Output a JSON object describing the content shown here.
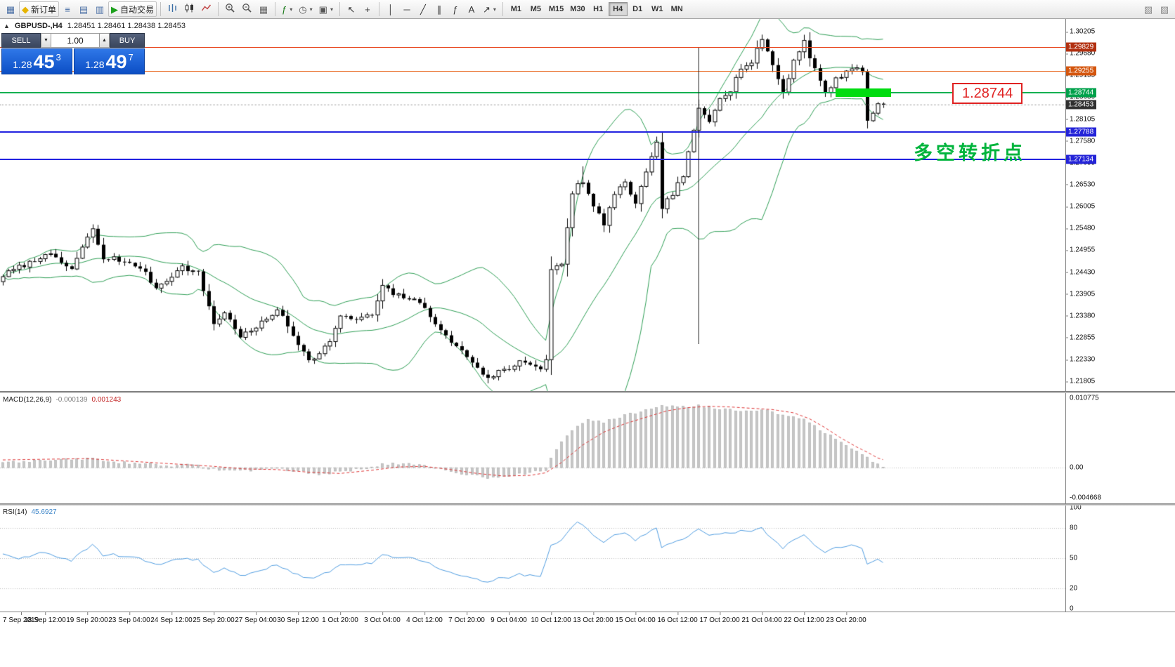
{
  "toolbar": {
    "caret_glyph": "▾",
    "buttons": [
      {
        "name": "chart-window",
        "glyph": "▦",
        "color": "#4a6fa5"
      },
      {
        "name": "new-order",
        "glyph": "◆",
        "color": "#e6b400",
        "label": "新订单"
      },
      {
        "name": "market-watch",
        "glyph": "≡",
        "color": "#4a6fa5"
      },
      {
        "name": "data-window",
        "glyph": "▤",
        "color": "#4a6fa5"
      },
      {
        "name": "navigator",
        "glyph": "▥",
        "color": "#4a6fa5"
      },
      {
        "name": "autotrading",
        "glyph": "▶",
        "color": "#1ca01c",
        "label": "自动交易"
      },
      {
        "sep": true
      },
      {
        "name": "bar-chart",
        "svg": "bars"
      },
      {
        "name": "candlestick-chart",
        "svg": "candles"
      },
      {
        "name": "line-chart",
        "svg": "line"
      },
      {
        "sep": true
      },
      {
        "name": "zoom-in",
        "svg": "zoomin"
      },
      {
        "name": "zoom-out",
        "svg": "zoomout"
      },
      {
        "name": "tile-windows",
        "glyph": "▦",
        "color": "#666666"
      },
      {
        "sep": true
      },
      {
        "name": "indicators",
        "glyph": "ƒ",
        "color": "#1a7a1a",
        "caret": true
      },
      {
        "name": "periods",
        "glyph": "◷",
        "color": "#555555",
        "caret": true
      },
      {
        "name": "templates",
        "glyph": "▣",
        "color": "#555555",
        "caret": true
      },
      {
        "sep": true
      },
      {
        "name": "cursor",
        "glyph": "↖",
        "color": "#333333"
      },
      {
        "name": "crosshair",
        "glyph": "+",
        "color": "#333333"
      },
      {
        "sep": true
      },
      {
        "name": "vertical-line",
        "glyph": "│",
        "color": "#333333"
      },
      {
        "name": "horizontal-line",
        "glyph": "─",
        "color": "#333333"
      },
      {
        "name": "trendline",
        "glyph": "╱",
        "color": "#333333"
      },
      {
        "name": "equidistant-channel",
        "glyph": "∥",
        "color": "#333333"
      },
      {
        "name": "fibonacci",
        "glyph": "ƒ",
        "color": "#333333"
      },
      {
        "name": "text",
        "glyph": "A",
        "color": "#333333"
      },
      {
        "name": "arrows",
        "glyph": "↗",
        "color": "#333333",
        "caret": true
      },
      {
        "sep": true
      }
    ],
    "timeframes": [
      "M1",
      "M5",
      "M15",
      "M30",
      "H1",
      "H4",
      "D1",
      "W1",
      "MN"
    ],
    "active_timeframe": "H4",
    "right_buttons": [
      {
        "name": "object-list",
        "glyph": "▧",
        "color": "#888888"
      },
      {
        "name": "docking",
        "glyph": "▨",
        "color": "#888888"
      }
    ]
  },
  "chart": {
    "collapse_glyph": "▲",
    "title": "GBPUSD-,H4",
    "ohlc": "1.28451 1.28461 1.28438 1.28453"
  },
  "trade_panel": {
    "sell_label": "SELL",
    "buy_label": "BUY",
    "volume": "1.00",
    "step_down_glyph": "▼",
    "step_up_glyph": "▲",
    "sell_price": {
      "prefix": "1.28",
      "big": "45",
      "sup": "3"
    },
    "buy_price": {
      "prefix": "1.28",
      "big": "49",
      "sup": "7"
    }
  },
  "annotations": {
    "price_box": "1.28744",
    "turning_point_text": "多空转折点"
  },
  "price_axis": {
    "ticks": [
      "1.30205",
      "1.29680",
      "1.29155",
      "1.28630",
      "1.28105",
      "1.27580",
      "1.27055",
      "1.26530",
      "1.26005",
      "1.25480",
      "1.24955",
      "1.24430",
      "1.23905",
      "1.23380",
      "1.22855",
      "1.22330",
      "1.21805"
    ],
    "badges": [
      {
        "label": "1.29829",
        "price": 1.29829,
        "color": "#b23010"
      },
      {
        "label": "1.29255",
        "price": 1.29255,
        "color": "#d4560e"
      },
      {
        "label": "1.28744",
        "price": 1.28744,
        "color": "#00a14b"
      },
      {
        "label": "1.28453",
        "price": 1.28453,
        "color": "#303030"
      },
      {
        "label": "1.27788",
        "price": 1.27788,
        "color": "#2424d8"
      },
      {
        "label": "1.27134",
        "price": 1.27134,
        "color": "#2424d8"
      }
    ]
  },
  "hlines": [
    {
      "price": 1.29829,
      "color": "#e8431a",
      "width": 1
    },
    {
      "price": 1.29255,
      "color": "#e8641a",
      "width": 1
    },
    {
      "price": 1.28744,
      "color": "#00b050",
      "width": 2
    },
    {
      "price": 1.27788,
      "color": "#2222e0",
      "width": 2
    },
    {
      "price": 1.27134,
      "color": "#2222e0",
      "width": 2
    }
  ],
  "current_price": 1.28453,
  "indicator_macd": {
    "label": "MACD(12,26,9)",
    "value_main": "-0.000139",
    "value_signal": "0.001243",
    "scale_top": "0.010775",
    "scale_zero": "0.00",
    "scale_bottom": "-0.004668"
  },
  "indicator_rsi": {
    "label": "RSI(14)",
    "value": "45.6927",
    "scale": [
      "100",
      "80",
      "50",
      "20",
      "0"
    ]
  },
  "time_axis": [
    "7 Sep 2019",
    "18 Sep 12:00",
    "19 Sep 20:00",
    "23 Sep 04:00",
    "24 Sep 12:00",
    "25 Sep 20:00",
    "27 Sep 04:00",
    "30 Sep 12:00",
    "1 Oct 20:00",
    "3 Oct 04:00",
    "4 Oct 12:00",
    "7 Oct 20:00",
    "9 Oct 04:00",
    "10 Oct 12:00",
    "13 Oct 20:00",
    "15 Oct 04:00",
    "16 Oct 12:00",
    "17 Oct 20:00",
    "21 Oct 04:00",
    "22 Oct 12:00",
    "23 Oct 20:00"
  ],
  "colors": {
    "candle_up": "#ffffff",
    "candle_down": "#000000",
    "candle_outline": "#000000",
    "bollinger": "#2e9e55",
    "macd_hist_fill": "#c6c6c6",
    "macd_hist_stroke": "#a8a8a8",
    "macd_signal": "#dd3333",
    "rsi_line": "#4f9ce0",
    "grid_dotted": "#bdbdbd",
    "annotation_green": "#00b43c",
    "annotation_red": "#e02222",
    "zone_green": "#00dc10"
  },
  "chart_data": {
    "type": "candlestick",
    "symbol": "GBPUSD-",
    "timeframe": "H4",
    "bars": 168,
    "price_range_top": 1.30509,
    "price_range_bottom": 1.21573,
    "macd_range_top": 0.011645,
    "macd_range_bottom": -0.005539,
    "rsi_range_top": 102.78,
    "rsi_range_bottom": -2.78,
    "last_ohlc": {
      "open": 1.28451,
      "high": 1.28461,
      "low": 1.28438,
      "close": 1.28453
    },
    "bollinger": {
      "period": 20,
      "deviation": 2
    },
    "close_anchors": [
      [
        0,
        1.2435
      ],
      [
        3,
        1.2455
      ],
      [
        6,
        1.247
      ],
      [
        8,
        1.249
      ],
      [
        11,
        1.2465
      ],
      [
        13,
        1.245
      ],
      [
        15,
        1.25
      ],
      [
        17,
        1.2548
      ],
      [
        19,
        1.247
      ],
      [
        21,
        1.248
      ],
      [
        23,
        1.2465
      ],
      [
        26,
        1.2455
      ],
      [
        29,
        1.2405
      ],
      [
        31,
        1.2425
      ],
      [
        34,
        1.2455
      ],
      [
        37,
        1.244
      ],
      [
        40,
        1.232
      ],
      [
        42,
        1.2345
      ],
      [
        45,
        1.229
      ],
      [
        47,
        1.23
      ],
      [
        50,
        1.233
      ],
      [
        52,
        1.2355
      ],
      [
        55,
        1.229
      ],
      [
        58,
        1.2235
      ],
      [
        60,
        1.2245
      ],
      [
        62,
        1.228
      ],
      [
        64,
        1.2335
      ],
      [
        67,
        1.233
      ],
      [
        70,
        1.234
      ],
      [
        72,
        1.2408
      ],
      [
        74,
        1.239
      ],
      [
        77,
        1.238
      ],
      [
        80,
        1.236
      ],
      [
        83,
        1.23
      ],
      [
        86,
        1.2265
      ],
      [
        88,
        1.224
      ],
      [
        90,
        1.2215
      ],
      [
        92,
        1.2185
      ],
      [
        94,
        1.2205
      ],
      [
        96,
        1.221
      ],
      [
        98,
        1.223
      ],
      [
        100,
        1.2225
      ],
      [
        102,
        1.221
      ],
      [
        103,
        1.223
      ],
      [
        104,
        1.2445
      ],
      [
        106,
        1.2465
      ],
      [
        108,
        1.263
      ],
      [
        109,
        1.266
      ],
      [
        110,
        1.2655
      ],
      [
        112,
        1.26
      ],
      [
        114,
        1.256
      ],
      [
        116,
        1.263
      ],
      [
        118,
        1.2655
      ],
      [
        120,
        1.261
      ],
      [
        122,
        1.268
      ],
      [
        124,
        1.275
      ],
      [
        125,
        1.26
      ],
      [
        127,
        1.263
      ],
      [
        129,
        1.2675
      ],
      [
        131,
        1.278
      ],
      [
        132,
        1.2835
      ],
      [
        134,
        1.2805
      ],
      [
        136,
        1.2865
      ],
      [
        138,
        1.288
      ],
      [
        140,
        1.2935
      ],
      [
        142,
        1.2945
      ],
      [
        144,
        1.3005
      ],
      [
        146,
        1.294
      ],
      [
        148,
        1.2875
      ],
      [
        150,
        1.295
      ],
      [
        152,
        1.3
      ],
      [
        153,
        1.296
      ],
      [
        155,
        1.29
      ],
      [
        156,
        1.2875
      ],
      [
        158,
        1.2905
      ],
      [
        160,
        1.2925
      ],
      [
        161,
        1.2935
      ],
      [
        163,
        1.2925
      ],
      [
        164,
        1.2805
      ],
      [
        165,
        1.2825
      ],
      [
        166,
        1.285
      ],
      [
        167,
        1.28453
      ]
    ],
    "wick_overrides": [
      {
        "bar": 17,
        "high": 1.2552
      },
      {
        "bar": 72,
        "high": 1.2418
      },
      {
        "bar": 92,
        "low": 1.2176
      },
      {
        "bar": 104,
        "low": 1.2196
      },
      {
        "bar": 110,
        "high": 1.2697
      },
      {
        "bar": 124,
        "high": 1.2756
      },
      {
        "bar": 125,
        "low": 1.2572
      },
      {
        "bar": 144,
        "high": 1.3012
      },
      {
        "bar": 152,
        "high": 1.3013
      },
      {
        "bar": 164,
        "low": 1.2793
      }
    ],
    "vertical_line_object": {
      "bar": 132,
      "price_from": 1.29818,
      "price_to": 1.22703
    },
    "highlight_zone": {
      "price": 1.28744,
      "bar_from": 158,
      "bar_to": 168.5
    },
    "macd_hist_anchors": [
      [
        0,
        0.0009
      ],
      [
        6,
        0.001
      ],
      [
        12,
        0.0012
      ],
      [
        17,
        0.0014
      ],
      [
        20,
        0.0009
      ],
      [
        24,
        0.0007
      ],
      [
        28,
        0.0006
      ],
      [
        32,
        0.0003
      ],
      [
        36,
        0.0004
      ],
      [
        40,
        -0.0002
      ],
      [
        44,
        -0.0005
      ],
      [
        48,
        -0.0003
      ],
      [
        52,
        0.0
      ],
      [
        56,
        -0.0006
      ],
      [
        60,
        -0.001
      ],
      [
        64,
        -0.0006
      ],
      [
        68,
        -0.0002
      ],
      [
        72,
        0.0005
      ],
      [
        75,
        0.0006
      ],
      [
        78,
        0.0004
      ],
      [
        81,
        0.0001
      ],
      [
        84,
        -0.0004
      ],
      [
        88,
        -0.001
      ],
      [
        92,
        -0.0015
      ],
      [
        96,
        -0.0012
      ],
      [
        100,
        -0.0008
      ],
      [
        103,
        -0.0004
      ],
      [
        105,
        0.003
      ],
      [
        108,
        0.0058
      ],
      [
        111,
        0.0075
      ],
      [
        114,
        0.007
      ],
      [
        117,
        0.0078
      ],
      [
        120,
        0.0085
      ],
      [
        123,
        0.0092
      ],
      [
        126,
        0.0096
      ],
      [
        129,
        0.0094
      ],
      [
        132,
        0.0096
      ],
      [
        135,
        0.0092
      ],
      [
        138,
        0.009
      ],
      [
        141,
        0.0088
      ],
      [
        144,
        0.009
      ],
      [
        147,
        0.0084
      ],
      [
        150,
        0.008
      ],
      [
        152,
        0.0074
      ],
      [
        154,
        0.0064
      ],
      [
        156,
        0.0054
      ],
      [
        158,
        0.0046
      ],
      [
        160,
        0.0036
      ],
      [
        162,
        0.0026
      ],
      [
        164,
        0.0016
      ],
      [
        166,
        0.0004
      ],
      [
        167,
        -0.00014
      ]
    ],
    "macd_signal_anchors": [
      [
        0,
        0.0012
      ],
      [
        8,
        0.0013
      ],
      [
        16,
        0.0014
      ],
      [
        24,
        0.001
      ],
      [
        32,
        0.0006
      ],
      [
        40,
        0.0002
      ],
      [
        46,
        -0.0002
      ],
      [
        52,
        -0.0003
      ],
      [
        58,
        -0.0007
      ],
      [
        64,
        -0.0009
      ],
      [
        70,
        -0.0004
      ],
      [
        75,
        0.0001
      ],
      [
        80,
        0.0002
      ],
      [
        85,
        -0.0003
      ],
      [
        90,
        -0.0009
      ],
      [
        95,
        -0.0013
      ],
      [
        100,
        -0.0012
      ],
      [
        103,
        -0.0008
      ],
      [
        106,
        0.0008
      ],
      [
        110,
        0.0035
      ],
      [
        114,
        0.0055
      ],
      [
        118,
        0.0068
      ],
      [
        122,
        0.0078
      ],
      [
        126,
        0.0088
      ],
      [
        130,
        0.0093
      ],
      [
        134,
        0.0095
      ],
      [
        138,
        0.0094
      ],
      [
        142,
        0.0092
      ],
      [
        146,
        0.009
      ],
      [
        150,
        0.0085
      ],
      [
        153,
        0.0076
      ],
      [
        156,
        0.0062
      ],
      [
        159,
        0.0046
      ],
      [
        162,
        0.0032
      ],
      [
        164,
        0.0024
      ],
      [
        166,
        0.0015
      ],
      [
        167,
        0.001243
      ]
    ],
    "rsi_anchors": [
      [
        0,
        54
      ],
      [
        3,
        50
      ],
      [
        6,
        53
      ],
      [
        8,
        56
      ],
      [
        11,
        50
      ],
      [
        13,
        48
      ],
      [
        15,
        56
      ],
      [
        17,
        64
      ],
      [
        19,
        52
      ],
      [
        21,
        54
      ],
      [
        23,
        51
      ],
      [
        26,
        50
      ],
      [
        29,
        43
      ],
      [
        31,
        46
      ],
      [
        34,
        50
      ],
      [
        37,
        48
      ],
      [
        40,
        36
      ],
      [
        42,
        40
      ],
      [
        45,
        33
      ],
      [
        47,
        35
      ],
      [
        50,
        40
      ],
      [
        52,
        44
      ],
      [
        55,
        36
      ],
      [
        58,
        30
      ],
      [
        60,
        32
      ],
      [
        62,
        37
      ],
      [
        64,
        44
      ],
      [
        67,
        43
      ],
      [
        70,
        45
      ],
      [
        72,
        54
      ],
      [
        74,
        51
      ],
      [
        77,
        50
      ],
      [
        80,
        47
      ],
      [
        83,
        39
      ],
      [
        86,
        35
      ],
      [
        88,
        32
      ],
      [
        90,
        29
      ],
      [
        92,
        26
      ],
      [
        94,
        30
      ],
      [
        96,
        31
      ],
      [
        98,
        34
      ],
      [
        100,
        33
      ],
      [
        102,
        31
      ],
      [
        104,
        62
      ],
      [
        106,
        68
      ],
      [
        108,
        80
      ],
      [
        109,
        87
      ],
      [
        110,
        84
      ],
      [
        112,
        72
      ],
      [
        114,
        65
      ],
      [
        116,
        72
      ],
      [
        118,
        74
      ],
      [
        120,
        68
      ],
      [
        122,
        74
      ],
      [
        124,
        79
      ],
      [
        125,
        60
      ],
      [
        127,
        65
      ],
      [
        129,
        69
      ],
      [
        131,
        75
      ],
      [
        132,
        78
      ],
      [
        134,
        72
      ],
      [
        136,
        75
      ],
      [
        138,
        75
      ],
      [
        140,
        77
      ],
      [
        142,
        76
      ],
      [
        144,
        80
      ],
      [
        146,
        68
      ],
      [
        148,
        60
      ],
      [
        150,
        69
      ],
      [
        152,
        74
      ],
      [
        153,
        68
      ],
      [
        155,
        60
      ],
      [
        156,
        56
      ],
      [
        158,
        60
      ],
      [
        160,
        62
      ],
      [
        161,
        63
      ],
      [
        163,
        60
      ],
      [
        164,
        45
      ],
      [
        165,
        47
      ],
      [
        166,
        50
      ],
      [
        167,
        45.69
      ]
    ]
  }
}
